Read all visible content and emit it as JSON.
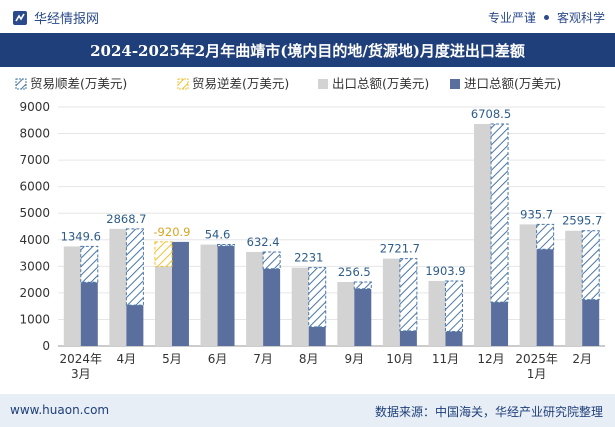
{
  "header": {
    "brand": "华经情报网",
    "slogan_left": "专业严谨",
    "slogan_right": "客观科学"
  },
  "footer": {
    "website": "www.huaon.com",
    "source": "数据来源：中国海关，华经产业研究院整理"
  },
  "colors": {
    "header_bg": "#1f3f7a",
    "export_bar": "#d3d3d3",
    "import_bar": "#5b6f9e",
    "surplus_label": "#2d5c8a",
    "deficit_label": "#d9a520",
    "surplus_hatch": "#4a77a8",
    "deficit_hatch": "#f0c230"
  },
  "chart_data": {
    "type": "bar",
    "title": "2024-2025年2月年曲靖市(境内目的地/货源地)月度进出口差额",
    "categories": [
      "2024年\n3月",
      "4月",
      "5月",
      "6月",
      "7月",
      "8月",
      "9月",
      "10月",
      "11月",
      "12月",
      "2025年\n1月",
      "2月"
    ],
    "ylim": [
      0,
      9000
    ],
    "yticks": [
      0,
      1000,
      2000,
      3000,
      4000,
      5000,
      6000,
      7000,
      8000,
      9000
    ],
    "legend": [
      "贸易顺差(万美元)",
      "贸易逆差(万美元)",
      "出口总额(万美元)",
      "进口总额(万美元)"
    ],
    "legend_position": "top",
    "series": [
      {
        "name": "出口总额(万美元)",
        "values": [
          3750,
          4410,
          3000,
          3820,
          3540,
          2950,
          2410,
          3290,
          2450,
          8360,
          4580,
          4340
        ]
      },
      {
        "name": "进口总额(万美元)",
        "values": [
          2400,
          1541,
          3921,
          3765,
          2908,
          719,
          2154,
          568,
          546,
          1651,
          3644,
          1744
        ]
      }
    ],
    "balance_labels": [
      "1349.6",
      "2868.7",
      "-920.9",
      "54.6",
      "632.4",
      "2231",
      "256.5",
      "2721.7",
      "1903.9",
      "6708.5",
      "935.7",
      "2595.7"
    ],
    "balance_values": [
      1349.6,
      2868.7,
      -920.9,
      54.6,
      632.4,
      2231,
      256.5,
      2721.7,
      1903.9,
      6708.5,
      935.7,
      2595.7
    ]
  }
}
